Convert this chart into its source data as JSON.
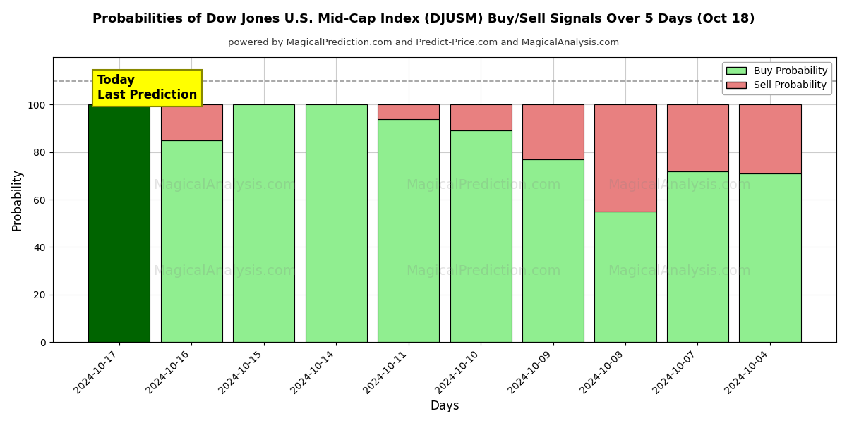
{
  "title": "Probabilities of Dow Jones U.S. Mid-Cap Index (DJUSM) Buy/Sell Signals Over 5 Days (Oct 18)",
  "subtitle": "powered by MagicalPrediction.com and Predict-Price.com and MagicalAnalysis.com",
  "xlabel": "Days",
  "ylabel": "Probability",
  "dates": [
    "2024-10-17",
    "2024-10-16",
    "2024-10-15",
    "2024-10-14",
    "2024-10-11",
    "2024-10-10",
    "2024-10-09",
    "2024-10-08",
    "2024-10-07",
    "2024-10-04"
  ],
  "buy_probs": [
    100,
    85,
    100,
    100,
    94,
    89,
    77,
    55,
    72,
    71
  ],
  "sell_probs": [
    0,
    15,
    0,
    0,
    6,
    11,
    23,
    45,
    28,
    29
  ],
  "buy_color_dark": "#006400",
  "buy_color_light": "#90EE90",
  "sell_color": "#E88080",
  "annotation_text": "Today\nLast Prediction",
  "annotation_bg": "#FFFF00",
  "dashed_line_y": 110,
  "ylim": [
    0,
    120
  ],
  "yticks": [
    0,
    20,
    40,
    60,
    80,
    100
  ],
  "legend_buy_label": "Buy Probability",
  "legend_sell_label": "Sell Probability",
  "bg_color": "#ffffff",
  "grid_color": "#cccccc",
  "bar_edge_color": "#000000",
  "bar_width": 0.85
}
